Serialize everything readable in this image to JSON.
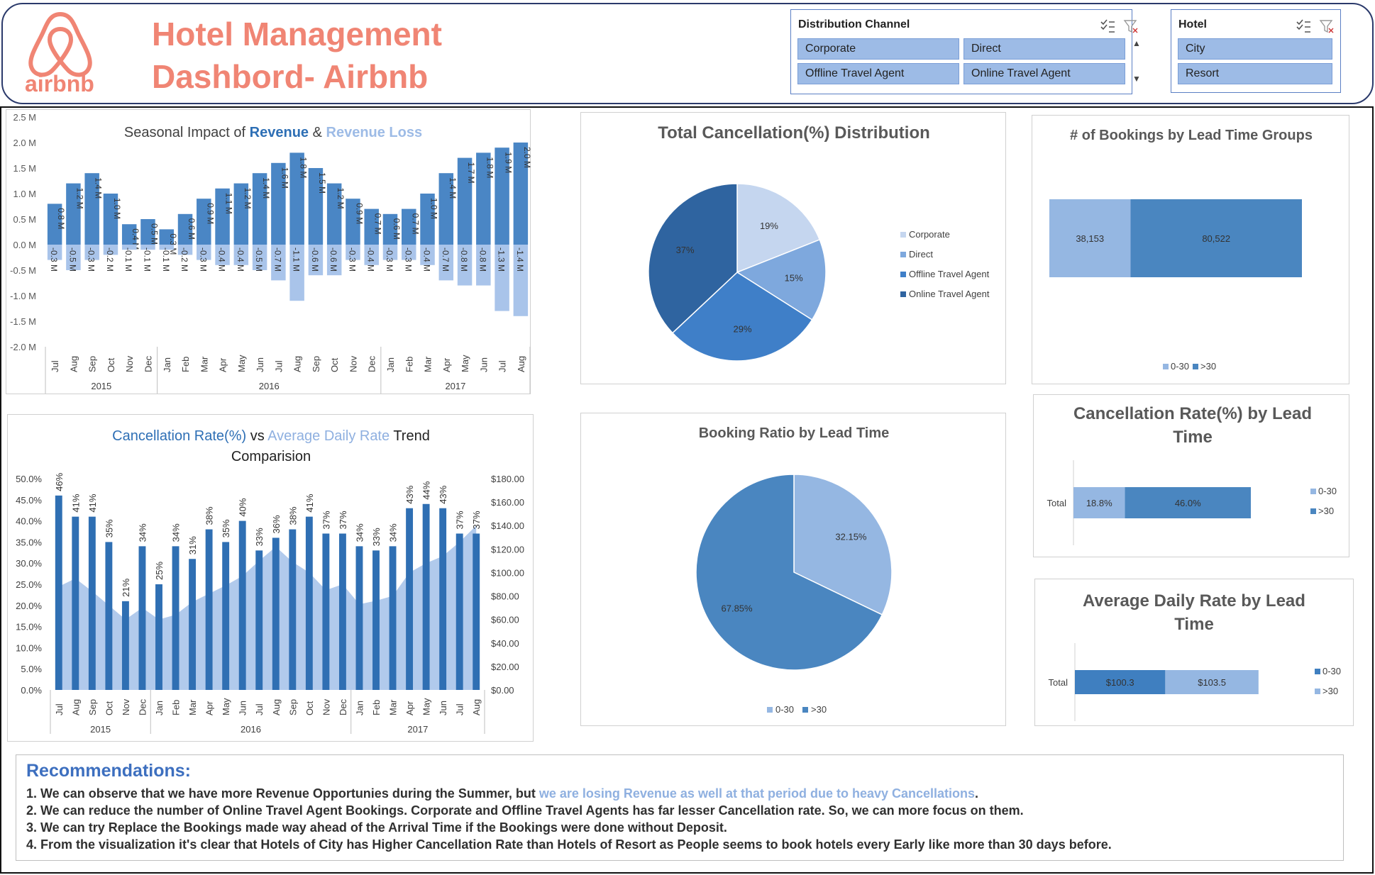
{
  "header": {
    "title_line1": "Hotel Management",
    "title_line2": "Dashbord- Airbnb",
    "logo_text": "airbnb"
  },
  "slicers": {
    "channel": {
      "title": "Distribution Channel",
      "items": [
        "Corporate",
        "Direct",
        "Offline Travel Agent",
        "Online Travel Agent"
      ]
    },
    "hotel": {
      "title": "Hotel",
      "items": [
        "City",
        "Resort"
      ]
    }
  },
  "colors": {
    "brand": "#f08574",
    "dark_blue": "#2e6fb5",
    "mid_blue": "#4a86c5",
    "light_blue": "#9dbbe6",
    "pale_blue": "#c7d8f0"
  },
  "chart_data": [
    {
      "id": "seasonal",
      "type": "bar",
      "title_parts": [
        "Seasonal Impact of ",
        "Revenue",
        " & ",
        "Revenue Loss"
      ],
      "months": [
        "Jul",
        "Aug",
        "Sep",
        "Oct",
        "Nov",
        "Dec",
        "Jan",
        "Feb",
        "Mar",
        "Apr",
        "May",
        "Jun",
        "Jul",
        "Aug",
        "Sep",
        "Oct",
        "Nov",
        "Dec",
        "Jan",
        "Feb",
        "Mar",
        "Apr",
        "May",
        "Jun",
        "Jul",
        "Aug"
      ],
      "years": [
        "2015",
        "2016",
        "2017"
      ],
      "series": [
        {
          "name": "Revenue",
          "values": [
            0.8,
            1.2,
            1.4,
            1.0,
            0.4,
            0.5,
            0.3,
            0.6,
            0.9,
            1.1,
            1.2,
            1.4,
            1.6,
            1.8,
            1.5,
            1.2,
            0.9,
            0.7,
            0.6,
            0.7,
            1.0,
            1.4,
            1.7,
            1.8,
            1.9,
            2.0
          ]
        },
        {
          "name": "Revenue Loss",
          "values": [
            -0.3,
            -0.5,
            -0.3,
            -0.2,
            -0.1,
            -0.1,
            -0.1,
            -0.2,
            -0.3,
            -0.4,
            -0.4,
            -0.5,
            -0.7,
            -1.1,
            -0.6,
            -0.6,
            -0.3,
            -0.4,
            -0.3,
            -0.3,
            -0.4,
            -0.7,
            -0.8,
            -0.8,
            -1.3,
            -1.4
          ]
        }
      ],
      "value_labels_revenue": [
        "0.8 M",
        "1.2 M",
        "1.4 M",
        "1.0 M",
        "0.4 M",
        "0.5 M",
        "0.3 M",
        "0.6 M",
        "0.9 M",
        "1.1 M",
        "1.2 M",
        "1.4 M",
        "1.6 M",
        "1.8 M",
        "1.5 M",
        "1.2 M",
        "0.9 M",
        "0.7 M",
        "0.6 M",
        "0.7 M",
        "1.0 M",
        "1.4 M",
        "1.7 M",
        "1.8 M",
        "1.9 M",
        "2.0 M"
      ],
      "value_labels_loss": [
        "-0.3 M",
        "-0.5 M",
        "-0.3 M",
        "-0.2 M",
        "-0.1 M",
        "-0.1 M",
        "-0.1 M",
        "-0.2 M",
        "-0.3 M",
        "-0.4 M",
        "-0.4 M",
        "-0.5 M",
        "-0.7 M",
        "-1.1 M",
        "-0.6 M",
        "-0.6 M",
        "-0.3 M",
        "-0.4 M",
        "-0.3 M",
        "-0.3 M",
        "-0.4 M",
        "-0.7 M",
        "-0.8 M",
        "-0.8 M",
        "-1.3 M",
        "-1.4 M"
      ],
      "yticks": [
        "2.5 M",
        "2.0 M",
        "1.5 M",
        "1.0 M",
        "0.5 M",
        "0.0 M",
        "-0.5 M",
        "-1.0 M",
        "-1.5 M",
        "-2.0 M"
      ],
      "ylim": [
        -2.0,
        2.5
      ]
    },
    {
      "id": "cancel_adr",
      "type": "bar",
      "title_parts": [
        "Cancellation Rate(%)",
        " vs ",
        "Average Daily Rate",
        " Trend"
      ],
      "title_line2": "Comparision",
      "months": [
        "Jul",
        "Aug",
        "Sep",
        "Oct",
        "Nov",
        "Dec",
        "Jan",
        "Feb",
        "Mar",
        "Apr",
        "May",
        "Jun",
        "Jul",
        "Aug",
        "Sep",
        "Oct",
        "Nov",
        "Dec",
        "Jan",
        "Feb",
        "Mar",
        "Apr",
        "May",
        "Jun",
        "Jul",
        "Aug"
      ],
      "years": [
        "2015",
        "2016",
        "2017"
      ],
      "series": [
        {
          "name": "Cancellation Rate(%)",
          "values": [
            46,
            41,
            41,
            35,
            21,
            34,
            25,
            34,
            31,
            38,
            35,
            40,
            33,
            36,
            38,
            41,
            37,
            37,
            34,
            33,
            34,
            43,
            44,
            43,
            37,
            37
          ]
        },
        {
          "name": "Average Daily Rate",
          "values": [
            88,
            95,
            84,
            72,
            60,
            70,
            60,
            64,
            75,
            82,
            89,
            97,
            110,
            122,
            109,
            100,
            85,
            90,
            73,
            76,
            80,
            100,
            108,
            114,
            126,
            140
          ]
        }
      ],
      "cancel_labels": [
        "46%",
        "41%",
        "41%",
        "35%",
        "21%",
        "34%",
        "25%",
        "34%",
        "31%",
        "38%",
        "35%",
        "40%",
        "33%",
        "36%",
        "38%",
        "41%",
        "37%",
        "37%",
        "34%",
        "33%",
        "34%",
        "43%",
        "44%",
        "43%",
        "37%",
        "37%"
      ],
      "left_ticks": [
        "50.0%",
        "45.0%",
        "40.0%",
        "35.0%",
        "30.0%",
        "25.0%",
        "20.0%",
        "15.0%",
        "10.0%",
        "5.0%",
        "0.0%"
      ],
      "right_ticks": [
        "$180.00",
        "$160.00",
        "$140.00",
        "$120.00",
        "$100.00",
        "$80.00",
        "$60.00",
        "$40.00",
        "$20.00",
        "$0.00"
      ],
      "ylim_left": [
        0,
        50
      ],
      "ylim_right": [
        0,
        180
      ]
    },
    {
      "id": "cancel_dist",
      "type": "pie",
      "title": "Total Cancellation(%) Distribution",
      "labels": [
        "Corporate",
        "Direct",
        "Offline Travel Agent",
        "Online Travel Agent"
      ],
      "values": [
        19,
        15,
        29,
        37
      ],
      "value_labels": [
        "19%",
        "15%",
        "29%",
        "37%"
      ],
      "colors": [
        "#c5d6ef",
        "#7ea8dd",
        "#3f7fc8",
        "#2f64a0"
      ]
    },
    {
      "id": "booking_ratio",
      "type": "pie",
      "title": "Booking Ratio by Lead Time",
      "labels": [
        "0-30",
        ">30"
      ],
      "values": [
        32.15,
        67.85
      ],
      "value_labels": [
        "32.15%",
        "67.85%"
      ],
      "colors": [
        "#95b7e2",
        "#4a86c0"
      ]
    },
    {
      "id": "bookings_lead",
      "type": "bar",
      "title": "# of Bookings by Lead Time Groups",
      "labels": [
        "0-30",
        ">30"
      ],
      "values": [
        38153,
        80522
      ],
      "value_labels": [
        "38,153",
        "80,522"
      ],
      "colors": [
        "#95b7e2",
        "#4a86c0"
      ]
    },
    {
      "id": "cancel_lead",
      "type": "bar",
      "title": "Cancellation Rate(%) by Lead Time",
      "category": "Total",
      "labels": [
        "0-30",
        ">30"
      ],
      "values": [
        18.8,
        46.0
      ],
      "value_labels": [
        "18.8%",
        "46.0%"
      ],
      "colors": [
        "#95b7e2",
        "#4a86c0"
      ]
    },
    {
      "id": "adr_lead",
      "type": "bar",
      "title": "Average Daily Rate by Lead Time",
      "category": "Total",
      "labels": [
        "0-30",
        ">30"
      ],
      "values": [
        100.3,
        103.5
      ],
      "value_labels": [
        "$100.3",
        "$103.5"
      ],
      "colors": [
        "#3f7fc0",
        "#95b7e2"
      ]
    }
  ],
  "recommendations": {
    "heading": "Recommendations:",
    "line1_a": "1. We can observe that we have more Revenue Opportunies during the Summer, but ",
    "line1_b": "we are losing Revenue as well at that period due to heavy Cancellations",
    "line1_c": ".",
    "line2": "2. We can reduce the number of Online Travel Agent Bookings. Corporate and Offline Travel Agents has far lesser Cancellation rate. So, we can more focus on them.",
    "line3": "3. We can try Replace the Bookings made way ahead of the Arrival Time if the Bookings were done without Deposit.",
    "line4": "4. From the visualization it's clear that Hotels of City has Higher Cancellation Rate than Hotels of Resort as People seems to book hotels every Early like more than 30 days before."
  }
}
